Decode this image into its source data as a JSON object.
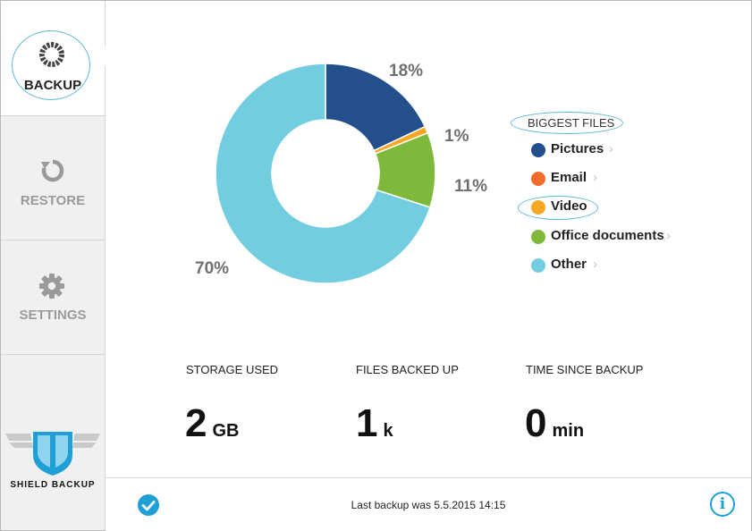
{
  "sidebar": {
    "items": [
      {
        "label": "BACKUP",
        "icon": "backup-ring-icon",
        "active": true
      },
      {
        "label": "RESTORE",
        "icon": "restore-icon",
        "active": false
      },
      {
        "label": "SETTINGS",
        "icon": "gear-icon",
        "active": false
      }
    ],
    "brand": "SHIELD BACKUP"
  },
  "chart_data": {
    "type": "pie",
    "donut": true,
    "categories": [
      "Pictures",
      "Video",
      "Office documents",
      "Other"
    ],
    "values": [
      18,
      1,
      11,
      70
    ],
    "labels": [
      "18%",
      "1%",
      "11%",
      "70%"
    ],
    "colors": [
      "#23508a",
      "#f5a623",
      "#7fb93c",
      "#72cde0"
    ]
  },
  "legend": {
    "title": "BIGGEST FILES",
    "items": [
      {
        "label": "Pictures",
        "color": "#23508a"
      },
      {
        "label": "Email",
        "color": "#f26c2b"
      },
      {
        "label": "Video",
        "color": "#f5a623"
      },
      {
        "label": "Office documents",
        "color": "#7fb93c"
      },
      {
        "label": "Other",
        "color": "#72cde0"
      }
    ],
    "chevron": "›"
  },
  "stats": [
    {
      "label": "STORAGE USED",
      "value": "2",
      "unit": "GB"
    },
    {
      "label": "FILES BACKED UP",
      "value": "1",
      "unit": "k"
    },
    {
      "label": "TIME SINCE BACKUP",
      "value": "0",
      "unit": "min"
    }
  ],
  "footer": {
    "status": "Last backup was 5.5.2015 14:15",
    "info_glyph": "i"
  },
  "colors": {
    "accent": "#1ea0d7"
  }
}
